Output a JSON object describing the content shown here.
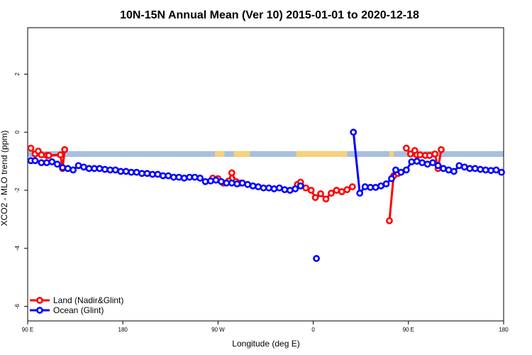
{
  "chart_data": {
    "type": "line",
    "title": "10N-15N Annual Mean (Ver 10)   2015-01-01 to 2020-12-18",
    "xlabel": "Longitude (deg E)",
    "ylabel": "XCO2 - MLO trend (ppm)",
    "x_ticks": [
      {
        "value": 90,
        "label": "90 E"
      },
      {
        "value": 180,
        "label": "180"
      },
      {
        "value": 270,
        "label": "90 W"
      },
      {
        "value": 360,
        "label": "0"
      },
      {
        "value": 450,
        "label": "90 E"
      },
      {
        "value": 540,
        "label": "180"
      }
    ],
    "y_ticks": [
      {
        "value": 2,
        "label": "2"
      },
      {
        "value": 0,
        "label": "0"
      },
      {
        "value": -2,
        "label": "-2"
      },
      {
        "value": -4,
        "label": "-4"
      },
      {
        "value": -6,
        "label": "-6"
      }
    ],
    "xlim": [
      90,
      540
    ],
    "ylim": [
      -6.5,
      3.6
    ],
    "band": {
      "y_top": -0.65,
      "y_bottom": -0.85,
      "color": "#a8bfe0",
      "land_color": "#f5d27a"
    },
    "land_segments": [
      [
        267,
        276
      ],
      [
        285,
        300
      ],
      [
        344,
        392
      ],
      [
        432,
        436
      ]
    ],
    "legend": {
      "position": "bottom-left"
    },
    "series": [
      {
        "name": "Land (Nadir&Glint)",
        "color": "#ff0000",
        "segments": [
          [
            [
              93,
              -0.55
            ],
            [
              97,
              -0.75
            ],
            [
              100,
              -0.65
            ],
            [
              103,
              -0.78
            ],
            [
              108,
              -0.8
            ],
            [
              110,
              -0.8
            ],
            [
              121,
              -0.78
            ],
            [
              123,
              -1.25
            ],
            [
              125,
              -0.6
            ]
          ],
          [
            [
              265,
              -1.58
            ],
            [
              270,
              -1.6
            ],
            [
              275,
              -1.75
            ],
            [
              280,
              -1.68
            ],
            [
              283,
              -1.4
            ],
            [
              287,
              -1.7
            ],
            [
              291,
              -1.75
            ]
          ],
          [
            [
              345,
              -1.8
            ],
            [
              348,
              -1.72
            ],
            [
              353,
              -1.92
            ],
            [
              358,
              -2.0
            ],
            [
              362,
              -2.25
            ],
            [
              367,
              -2.12
            ],
            [
              372,
              -2.3
            ],
            [
              377,
              -2.1
            ],
            [
              382,
              -2.0
            ],
            [
              387,
              -2.05
            ],
            [
              392,
              -1.98
            ],
            [
              397,
              -1.88
            ]
          ],
          [
            [
              432,
              -3.05
            ],
            [
              436,
              -1.5
            ],
            [
              440,
              -1.42
            ]
          ],
          [
            [
              448,
              -0.55
            ],
            [
              452,
              -0.75
            ],
            [
              456,
              -0.63
            ],
            [
              458,
              -0.78
            ],
            [
              461,
              -0.78
            ],
            [
              466,
              -0.8
            ],
            [
              470,
              -0.8
            ],
            [
              475,
              -0.75
            ],
            [
              478,
              -1.25
            ],
            [
              481,
              -0.6
            ]
          ]
        ]
      },
      {
        "name": "Ocean (Glint)",
        "color": "#0000ff",
        "segments": [
          [
            [
              93,
              -0.98
            ],
            [
              97,
              -0.98
            ],
            [
              103,
              -1.05
            ],
            [
              108,
              -1.05
            ],
            [
              113,
              -1.02
            ],
            [
              118,
              -1.1
            ],
            [
              123,
              -1.22
            ],
            [
              128,
              -1.25
            ],
            [
              133,
              -1.3
            ],
            [
              138,
              -1.15
            ],
            [
              143,
              -1.2
            ],
            [
              148,
              -1.25
            ],
            [
              153,
              -1.25
            ],
            [
              158,
              -1.25
            ],
            [
              163,
              -1.28
            ],
            [
              168,
              -1.3
            ],
            [
              173,
              -1.3
            ],
            [
              178,
              -1.35
            ],
            [
              183,
              -1.35
            ],
            [
              188,
              -1.38
            ],
            [
              193,
              -1.38
            ],
            [
              198,
              -1.42
            ],
            [
              203,
              -1.42
            ],
            [
              208,
              -1.45
            ],
            [
              213,
              -1.45
            ],
            [
              218,
              -1.5
            ],
            [
              223,
              -1.5
            ],
            [
              228,
              -1.55
            ],
            [
              233,
              -1.55
            ],
            [
              238,
              -1.58
            ],
            [
              243,
              -1.55
            ],
            [
              248,
              -1.55
            ],
            [
              253,
              -1.58
            ],
            [
              258,
              -1.7
            ],
            [
              263,
              -1.68
            ],
            [
              268,
              -1.65
            ],
            [
              273,
              -1.7
            ],
            [
              278,
              -1.75
            ],
            [
              283,
              -1.75
            ],
            [
              288,
              -1.78
            ],
            [
              293,
              -1.75
            ],
            [
              298,
              -1.8
            ],
            [
              303,
              -1.85
            ],
            [
              308,
              -1.88
            ],
            [
              313,
              -1.92
            ],
            [
              318,
              -1.92
            ],
            [
              323,
              -1.95
            ],
            [
              328,
              -1.92
            ],
            [
              333,
              -1.98
            ],
            [
              338,
              -2.0
            ],
            [
              343,
              -1.95
            ],
            [
              348,
              -1.85
            ]
          ],
          [
            [
              363,
              -4.35
            ]
          ],
          [
            [
              398,
              0.0
            ],
            [
              404,
              -2.1
            ],
            [
              409,
              -1.88
            ],
            [
              414,
              -1.9
            ],
            [
              419,
              -1.9
            ],
            [
              424,
              -1.85
            ],
            [
              429,
              -1.78
            ],
            [
              434,
              -1.6
            ],
            [
              438,
              -1.3
            ],
            [
              443,
              -1.38
            ],
            [
              448,
              -1.3
            ],
            [
              453,
              -1.02
            ],
            [
              458,
              -1.0
            ],
            [
              463,
              -1.05
            ],
            [
              468,
              -1.1
            ],
            [
              473,
              -1.05
            ],
            [
              478,
              -1.15
            ],
            [
              483,
              -1.25
            ],
            [
              488,
              -1.3
            ],
            [
              493,
              -1.35
            ],
            [
              498,
              -1.15
            ],
            [
              503,
              -1.2
            ],
            [
              508,
              -1.25
            ],
            [
              513,
              -1.25
            ],
            [
              518,
              -1.28
            ],
            [
              523,
              -1.3
            ],
            [
              528,
              -1.32
            ],
            [
              533,
              -1.3
            ],
            [
              538,
              -1.38
            ]
          ]
        ]
      }
    ]
  }
}
